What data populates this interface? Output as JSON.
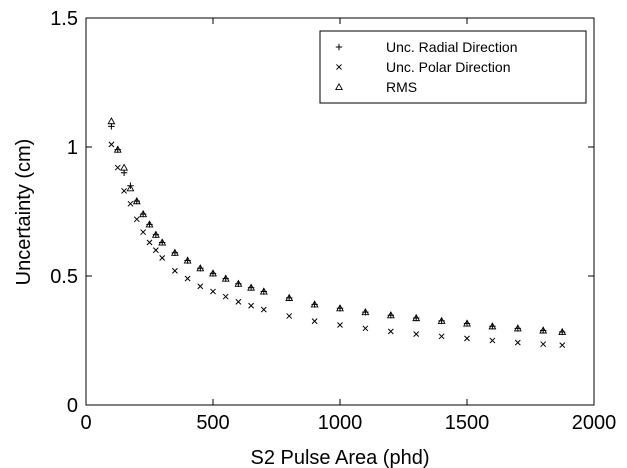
{
  "chart_data": {
    "type": "scatter",
    "xlabel": "S2 Pulse Area (phd)",
    "ylabel": "Uncertainty  (cm)",
    "xlim": [
      0,
      2000
    ],
    "ylim": [
      0,
      1.5
    ],
    "xticks": [
      0,
      500,
      1000,
      1500,
      2000
    ],
    "yticks": [
      0,
      0.5,
      1,
      1.5
    ],
    "xtick_labels": [
      "0",
      "500",
      "1000",
      "1500",
      "2000"
    ],
    "ytick_labels": [
      "0",
      "0.5",
      "1",
      "1.5"
    ],
    "grid": false,
    "legend_position": "top-right",
    "series": [
      {
        "name": "Unc. Radial Direction",
        "marker": "plus",
        "x": [
          100,
          125,
          150,
          175,
          200,
          225,
          250,
          275,
          300,
          350,
          400,
          450,
          500,
          550,
          600,
          650,
          700,
          800,
          900,
          1000,
          1100,
          1200,
          1300,
          1400,
          1500,
          1600,
          1700,
          1800,
          1875
        ],
        "y": [
          1.08,
          0.99,
          0.9,
          0.85,
          0.79,
          0.74,
          0.7,
          0.66,
          0.63,
          0.59,
          0.56,
          0.53,
          0.51,
          0.49,
          0.47,
          0.455,
          0.44,
          0.415,
          0.39,
          0.375,
          0.36,
          0.348,
          0.337,
          0.326,
          0.316,
          0.305,
          0.297,
          0.289,
          0.283
        ]
      },
      {
        "name": "Unc. Polar Direction",
        "marker": "x",
        "x": [
          100,
          125,
          150,
          175,
          200,
          225,
          250,
          275,
          300,
          350,
          400,
          450,
          500,
          550,
          600,
          650,
          700,
          800,
          900,
          1000,
          1100,
          1200,
          1300,
          1400,
          1500,
          1600,
          1700,
          1800,
          1875
        ],
        "y": [
          1.01,
          0.92,
          0.83,
          0.78,
          0.72,
          0.67,
          0.63,
          0.6,
          0.57,
          0.52,
          0.49,
          0.46,
          0.44,
          0.42,
          0.4,
          0.385,
          0.37,
          0.345,
          0.325,
          0.31,
          0.297,
          0.285,
          0.275,
          0.266,
          0.258,
          0.25,
          0.242,
          0.236,
          0.232
        ]
      },
      {
        "name": "RMS",
        "marker": "triangle",
        "x": [
          100,
          125,
          150,
          175,
          200,
          225,
          250,
          275,
          300,
          350,
          400,
          450,
          500,
          550,
          600,
          650,
          700,
          800,
          900,
          1000,
          1100,
          1200,
          1300,
          1400,
          1500,
          1600,
          1700,
          1800,
          1875
        ],
        "y": [
          1.1,
          0.99,
          0.92,
          0.84,
          0.79,
          0.74,
          0.7,
          0.66,
          0.63,
          0.59,
          0.56,
          0.53,
          0.51,
          0.49,
          0.47,
          0.455,
          0.44,
          0.415,
          0.39,
          0.375,
          0.36,
          0.348,
          0.337,
          0.326,
          0.316,
          0.305,
          0.297,
          0.289,
          0.283
        ]
      }
    ]
  }
}
